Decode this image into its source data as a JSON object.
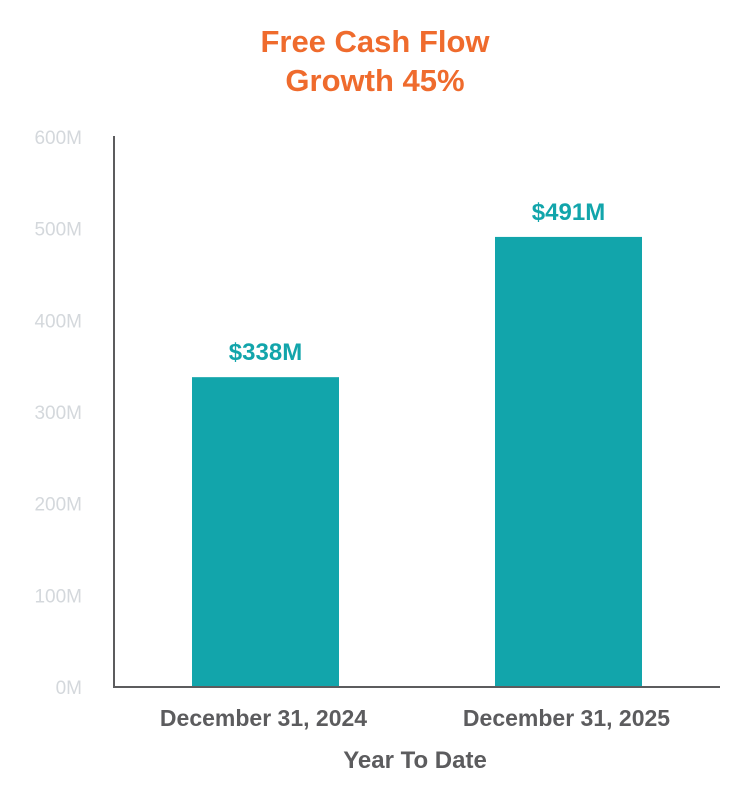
{
  "chart_data": {
    "type": "bar",
    "title": [
      "Free Cash Flow",
      "Growth 45%"
    ],
    "categories": [
      "December 31, 2024",
      "December 31, 2025"
    ],
    "values": [
      338,
      491
    ],
    "data_labels": [
      "$338M",
      "$491M"
    ],
    "xlabel": "Year To Date",
    "ylabel": "",
    "ylim": [
      0,
      600
    ],
    "yticks": [
      0,
      100,
      200,
      300,
      400,
      500,
      600
    ],
    "ytick_labels": [
      "0M",
      "100M",
      "200M",
      "300M",
      "400M",
      "500M",
      "600M"
    ],
    "grid": false,
    "colors": {
      "bar": "#12a5ab",
      "title": "#ef6b2d",
      "data_label": "#12a5ab",
      "axis": "#5c5c5e",
      "ytick": "#d4d8dc",
      "xtick": "#5c5c5e"
    }
  }
}
